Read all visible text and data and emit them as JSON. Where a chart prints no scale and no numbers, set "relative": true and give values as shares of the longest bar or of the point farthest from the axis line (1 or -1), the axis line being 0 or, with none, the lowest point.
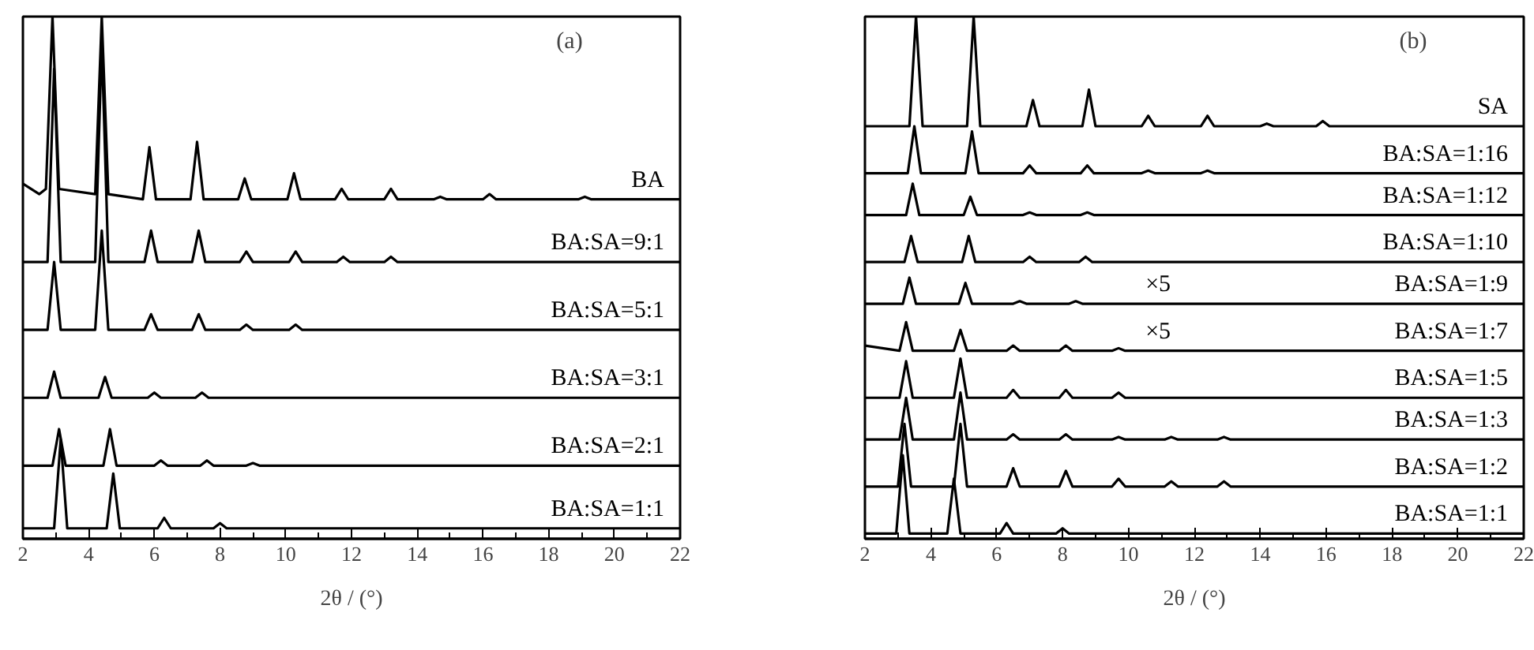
{
  "chart_data": [
    {
      "type": "line",
      "title": "(a)",
      "xlabel": "2θ / (°)",
      "relative": true,
      "xlim": [
        2,
        22
      ],
      "xticks": [
        2,
        {
          "value": 3,
          "label": null
        },
        4,
        {
          "value": 5,
          "label": null
        },
        6,
        {
          "value": 7,
          "label": null
        },
        8,
        {
          "value": 9,
          "label": null
        },
        10,
        {
          "value": 11,
          "label": null
        },
        12,
        {
          "value": 13,
          "label": null
        },
        14,
        {
          "value": 15,
          "label": null
        },
        16,
        {
          "value": 17,
          "label": null
        },
        18,
        {
          "value": 19,
          "label": null
        },
        20,
        {
          "value": 21,
          "label": null
        },
        22
      ],
      "grid": false,
      "legend": false,
      "marker": "none",
      "line_style": "solid",
      "series": [
        {
          "name": "BA",
          "color": "#000000",
          "x": [
            2,
            2.5,
            2.7,
            2.9,
            3.1,
            4.2,
            4.4,
            4.6,
            5.65,
            5.85,
            6.05,
            7.1,
            7.3,
            7.5,
            8.55,
            8.75,
            8.95,
            10.05,
            10.25,
            10.45,
            11.5,
            11.7,
            11.9,
            13.0,
            13.2,
            13.4,
            14.5,
            14.7,
            14.9,
            16.0,
            16.2,
            16.4,
            18.9,
            19.1,
            19.3,
            22
          ],
          "values": [
            0.68,
            0.66,
            0.67,
            1.0,
            0.67,
            0.66,
            1.0,
            0.66,
            0.65,
            0.75,
            0.65,
            0.65,
            0.76,
            0.65,
            0.65,
            0.69,
            0.65,
            0.65,
            0.7,
            0.65,
            0.65,
            0.67,
            0.65,
            0.65,
            0.67,
            0.65,
            0.65,
            0.655,
            0.65,
            0.65,
            0.66,
            0.65,
            0.65,
            0.655,
            0.65,
            0.65
          ]
        },
        {
          "name": "BA:SA=9:1",
          "color": "#000000",
          "x": [
            2,
            2.75,
            2.95,
            3.15,
            4.2,
            4.4,
            4.6,
            5.7,
            5.9,
            6.1,
            7.15,
            7.35,
            7.55,
            8.6,
            8.8,
            9.0,
            10.1,
            10.3,
            10.5,
            11.55,
            11.75,
            11.95,
            13.0,
            13.2,
            13.4,
            22
          ],
          "values": [
            0.53,
            0.53,
            0.9,
            0.53,
            0.53,
            0.95,
            0.53,
            0.53,
            0.59,
            0.53,
            0.53,
            0.59,
            0.53,
            0.53,
            0.55,
            0.53,
            0.53,
            0.55,
            0.53,
            0.53,
            0.54,
            0.53,
            0.53,
            0.54,
            0.53,
            0.53
          ]
        },
        {
          "name": "BA:SA=5:1",
          "color": "#000000",
          "x": [
            2,
            2.75,
            2.95,
            3.15,
            4.2,
            4.4,
            4.6,
            5.7,
            5.9,
            6.1,
            7.15,
            7.35,
            7.55,
            8.6,
            8.8,
            9.0,
            10.1,
            10.3,
            10.5,
            22
          ],
          "values": [
            0.4,
            0.4,
            0.53,
            0.4,
            0.4,
            0.59,
            0.4,
            0.4,
            0.43,
            0.4,
            0.4,
            0.43,
            0.4,
            0.4,
            0.41,
            0.4,
            0.4,
            0.41,
            0.4,
            0.4
          ]
        },
        {
          "name": "BA:SA=3:1",
          "color": "#000000",
          "x": [
            2,
            2.75,
            2.95,
            3.15,
            4.3,
            4.5,
            4.7,
            5.8,
            6.0,
            6.2,
            7.25,
            7.45,
            7.65,
            22
          ],
          "values": [
            0.27,
            0.27,
            0.32,
            0.27,
            0.27,
            0.31,
            0.27,
            0.27,
            0.28,
            0.27,
            0.27,
            0.28,
            0.27,
            0.27
          ]
        },
        {
          "name": "BA:SA=2:1",
          "color": "#000000",
          "x": [
            2,
            2.9,
            3.1,
            3.3,
            4.45,
            4.65,
            4.85,
            6.0,
            6.2,
            6.4,
            7.4,
            7.6,
            7.8,
            8.8,
            9.0,
            9.2,
            22
          ],
          "values": [
            0.14,
            0.14,
            0.21,
            0.14,
            0.14,
            0.21,
            0.14,
            0.14,
            0.15,
            0.14,
            0.14,
            0.15,
            0.14,
            0.14,
            0.145,
            0.14,
            0.14
          ]
        },
        {
          "name": "BA:SA=1:1",
          "color": "#000000",
          "x": [
            2,
            2.95,
            3.15,
            3.35,
            4.55,
            4.75,
            4.95,
            6.1,
            6.3,
            6.5,
            7.8,
            8.0,
            8.2,
            22
          ],
          "values": [
            0.02,
            0.02,
            0.19,
            0.02,
            0.02,
            0.125,
            0.02,
            0.02,
            0.04,
            0.02,
            0.02,
            0.03,
            0.02,
            0.02
          ]
        }
      ]
    },
    {
      "type": "line",
      "title": "(b)",
      "xlabel": "2θ / (°)",
      "relative": true,
      "xlim": [
        2,
        22
      ],
      "xticks": [
        2,
        {
          "value": 3,
          "label": null
        },
        4,
        {
          "value": 5,
          "label": null
        },
        6,
        {
          "value": 7,
          "label": null
        },
        8,
        {
          "value": 9,
          "label": null
        },
        10,
        {
          "value": 11,
          "label": null
        },
        12,
        {
          "value": 13,
          "label": null
        },
        14,
        {
          "value": 15,
          "label": null
        },
        16,
        {
          "value": 17,
          "label": null
        },
        18,
        {
          "value": 19,
          "label": null
        },
        20,
        {
          "value": 21,
          "label": null
        },
        22
      ],
      "grid": false,
      "legend": false,
      "marker": "none",
      "line_style": "solid",
      "annotations": [
        "×5",
        "×5"
      ],
      "series": [
        {
          "name": "SA",
          "color": "#000000",
          "x": [
            2,
            3.35,
            3.55,
            3.75,
            5.1,
            5.3,
            5.5,
            6.9,
            7.1,
            7.3,
            8.6,
            8.8,
            9.0,
            10.4,
            10.6,
            10.8,
            12.2,
            12.4,
            12.6,
            14.0,
            14.2,
            14.4,
            15.7,
            15.9,
            16.1,
            22
          ],
          "values": [
            0.79,
            0.79,
            1.0,
            0.79,
            0.79,
            1.0,
            0.79,
            0.79,
            0.84,
            0.79,
            0.79,
            0.86,
            0.79,
            0.79,
            0.81,
            0.79,
            0.79,
            0.81,
            0.79,
            0.79,
            0.795,
            0.79,
            0.79,
            0.8,
            0.79,
            0.79
          ]
        },
        {
          "name": "BA:SA=1:16",
          "color": "#000000",
          "x": [
            2,
            3.3,
            3.5,
            3.7,
            5.05,
            5.25,
            5.45,
            6.8,
            7.0,
            7.2,
            8.55,
            8.75,
            8.95,
            10.4,
            10.6,
            10.8,
            12.2,
            12.4,
            12.6,
            22
          ],
          "values": [
            0.7,
            0.7,
            0.79,
            0.7,
            0.7,
            0.78,
            0.7,
            0.7,
            0.715,
            0.7,
            0.7,
            0.715,
            0.7,
            0.7,
            0.705,
            0.7,
            0.7,
            0.705,
            0.7,
            0.7
          ]
        },
        {
          "name": "BA:SA=1:12",
          "color": "#000000",
          "x": [
            2,
            3.25,
            3.45,
            3.65,
            5.0,
            5.2,
            5.4,
            6.8,
            7.0,
            7.2,
            8.55,
            8.75,
            8.95,
            22
          ],
          "values": [
            0.62,
            0.62,
            0.68,
            0.62,
            0.62,
            0.655,
            0.62,
            0.62,
            0.625,
            0.62,
            0.62,
            0.625,
            0.62,
            0.62
          ]
        },
        {
          "name": "BA:SA=1:10",
          "color": "#000000",
          "x": [
            2,
            3.2,
            3.4,
            3.6,
            4.95,
            5.15,
            5.35,
            6.8,
            7.0,
            7.2,
            8.5,
            8.7,
            8.9,
            22
          ],
          "values": [
            0.53,
            0.53,
            0.58,
            0.53,
            0.53,
            0.58,
            0.53,
            0.53,
            0.54,
            0.53,
            0.53,
            0.54,
            0.53,
            0.53
          ]
        },
        {
          "name": "BA:SA=1:9",
          "color": "#000000",
          "x": [
            2,
            3.15,
            3.35,
            3.55,
            4.85,
            5.05,
            5.25,
            6.5,
            6.7,
            6.9,
            8.2,
            8.4,
            8.6,
            22
          ],
          "values": [
            0.45,
            0.45,
            0.5,
            0.45,
            0.45,
            0.49,
            0.45,
            0.45,
            0.455,
            0.45,
            0.45,
            0.455,
            0.45,
            0.45
          ]
        },
        {
          "name": "BA:SA=1:7",
          "color": "#000000",
          "x": [
            2,
            3.05,
            3.25,
            3.45,
            4.7,
            4.9,
            5.1,
            6.3,
            6.5,
            6.7,
            7.9,
            8.1,
            8.3,
            9.5,
            9.7,
            9.9,
            22
          ],
          "values": [
            0.37,
            0.36,
            0.415,
            0.36,
            0.36,
            0.4,
            0.36,
            0.36,
            0.37,
            0.36,
            0.36,
            0.37,
            0.36,
            0.36,
            0.365,
            0.36,
            0.36
          ]
        },
        {
          "name": "BA:SA=1:5",
          "color": "#000000",
          "x": [
            2,
            3.05,
            3.25,
            3.45,
            4.7,
            4.9,
            5.1,
            6.3,
            6.5,
            6.7,
            7.9,
            8.1,
            8.3,
            9.5,
            9.7,
            9.9,
            22
          ],
          "values": [
            0.27,
            0.27,
            0.34,
            0.27,
            0.27,
            0.345,
            0.27,
            0.27,
            0.285,
            0.27,
            0.27,
            0.285,
            0.27,
            0.27,
            0.28,
            0.27,
            0.27
          ]
        },
        {
          "name": "BA:SA=1:3",
          "color": "#000000",
          "x": [
            2,
            3.05,
            3.25,
            3.45,
            4.7,
            4.9,
            5.1,
            6.3,
            6.5,
            6.7,
            7.9,
            8.1,
            8.3,
            9.5,
            9.7,
            9.9,
            11.1,
            11.3,
            11.5,
            12.7,
            12.9,
            13.1,
            22
          ],
          "values": [
            0.19,
            0.19,
            0.27,
            0.19,
            0.19,
            0.28,
            0.19,
            0.19,
            0.2,
            0.19,
            0.19,
            0.2,
            0.19,
            0.19,
            0.195,
            0.19,
            0.19,
            0.195,
            0.19,
            0.19,
            0.195,
            0.19,
            0.19
          ]
        },
        {
          "name": "BA:SA=1:2",
          "color": "#000000",
          "x": [
            2,
            3.0,
            3.2,
            3.4,
            4.7,
            4.9,
            5.1,
            6.3,
            6.5,
            6.7,
            7.9,
            8.1,
            8.3,
            9.5,
            9.7,
            9.9,
            11.1,
            11.3,
            11.5,
            12.7,
            12.9,
            13.1,
            22
          ],
          "values": [
            0.1,
            0.1,
            0.22,
            0.1,
            0.1,
            0.22,
            0.1,
            0.1,
            0.135,
            0.1,
            0.1,
            0.13,
            0.1,
            0.1,
            0.115,
            0.1,
            0.1,
            0.11,
            0.1,
            0.1,
            0.11,
            0.1,
            0.1
          ]
        },
        {
          "name": "BA:SA=1:1",
          "color": "#000000",
          "x": [
            2,
            2.95,
            3.15,
            3.35,
            4.5,
            4.7,
            4.9,
            6.1,
            6.3,
            6.5,
            7.8,
            8.0,
            8.2,
            22
          ],
          "values": [
            0.01,
            0.01,
            0.16,
            0.01,
            0.01,
            0.115,
            0.01,
            0.01,
            0.03,
            0.01,
            0.01,
            0.02,
            0.01,
            0.01
          ]
        }
      ]
    }
  ]
}
